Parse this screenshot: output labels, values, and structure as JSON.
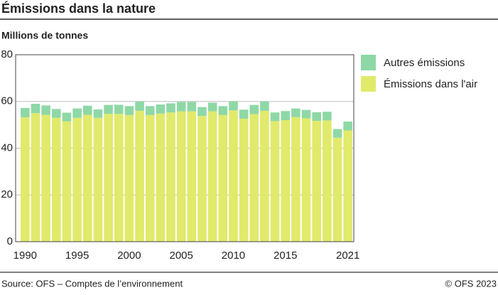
{
  "chart_data": {
    "type": "stacked-bar",
    "title": "Émissions dans la nature",
    "y_label": "Millions de tonnes",
    "source": "Source: OFS – Comptes de l’environnement",
    "copyright": "© OFS 2023",
    "categories": [
      "1990",
      null,
      null,
      null,
      null,
      "1995",
      null,
      null,
      null,
      null,
      "2000",
      null,
      null,
      null,
      null,
      "2005",
      null,
      null,
      null,
      null,
      "2010",
      null,
      null,
      null,
      null,
      "2015",
      null,
      null,
      null,
      null,
      null,
      "2021"
    ],
    "series": [
      {
        "name": "Émissions dans l'air",
        "color": "#e1ea6b",
        "values": [
          53.2,
          55.0,
          54.3,
          53.0,
          51.5,
          53.0,
          54.3,
          53.0,
          54.7,
          54.7,
          54.2,
          56.0,
          54.2,
          54.8,
          55.3,
          55.8,
          55.8,
          53.8,
          55.8,
          54.2,
          56.2,
          52.6,
          54.6,
          56.0,
          51.6,
          52.0,
          53.3,
          52.8,
          51.7,
          51.9,
          44.5,
          47.6
        ]
      },
      {
        "name": "Autres émissions",
        "color": "#8ed8a6",
        "values": [
          4.0,
          4.0,
          4.0,
          3.8,
          3.7,
          4.0,
          3.9,
          3.6,
          3.8,
          3.9,
          3.8,
          4.0,
          3.8,
          3.9,
          3.9,
          4.0,
          4.0,
          3.8,
          3.7,
          3.8,
          3.9,
          3.9,
          3.9,
          4.0,
          3.7,
          3.9,
          3.7,
          3.6,
          3.7,
          3.7,
          3.7,
          3.8
        ]
      }
    ],
    "ylim": [
      0,
      80
    ],
    "yticks": [
      0,
      20,
      40,
      60,
      80
    ],
    "grid": true,
    "legend": "right"
  }
}
